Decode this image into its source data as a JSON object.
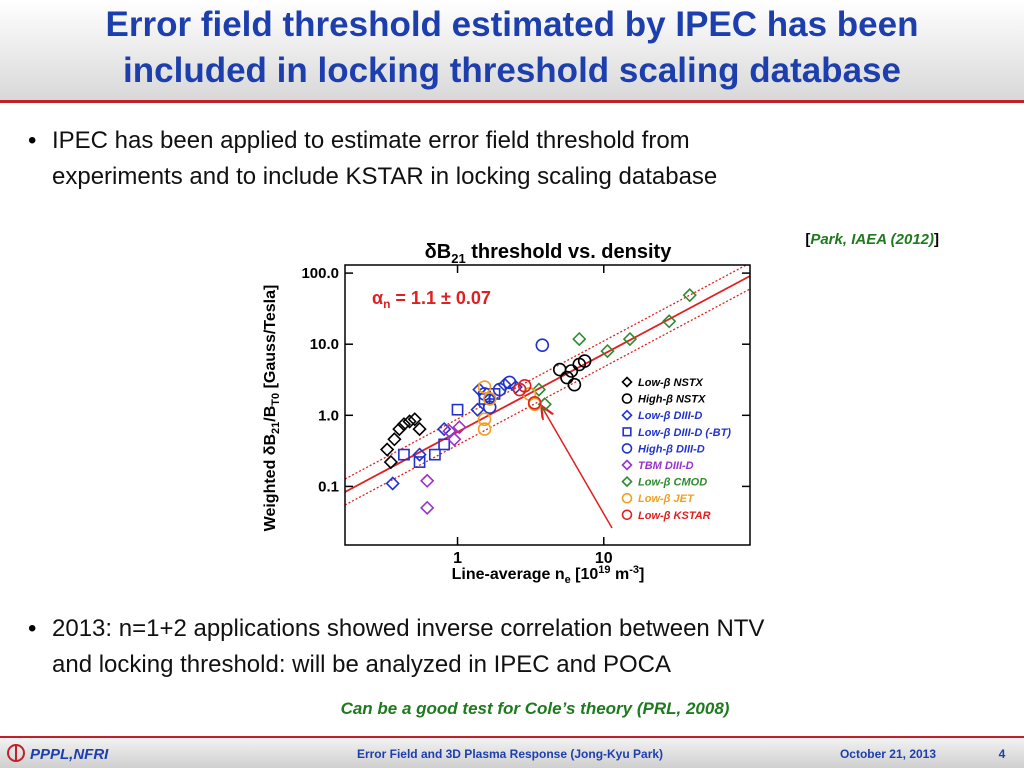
{
  "header": {
    "title_lines": [
      "Error field threshold estimated by IPEC has been",
      "included in locking threshold scaling database"
    ]
  },
  "bullets": [
    [
      "IPEC has been applied to estimate error field threshold from",
      "experiments and to include KSTAR in locking scaling database"
    ],
    [
      "2013: n=1+2 applications showed inverse correlation between NTV",
      "and locking threshold: will be analyzed in IPEC and POCA"
    ]
  ],
  "citation": [
    "[",
    "Park, IAEA (2012)",
    "]"
  ],
  "note": "Can be a good test for Cole’s theory (PRL, 2008)",
  "footer": {
    "org": "PPPL,NFRI",
    "talk": "Error Field and 3D Plasma Response (Jong-Kyu Park)",
    "date": "October 21, 2013",
    "page": "4"
  },
  "chart_data": {
    "type": "scatter",
    "title_parts": [
      "δB",
      "21",
      " threshold vs. density"
    ],
    "y_label_parts": [
      "Weighted δB",
      "21",
      "/B",
      "T0",
      " [Gauss/Tesla]"
    ],
    "x_label_parts": [
      "Line-average n",
      "e",
      " [10",
      "19",
      " m",
      "-3",
      "]"
    ],
    "annotation_parts": [
      "α",
      "n",
      " = 1.1 ± 0.07"
    ],
    "xscale": "log",
    "yscale": "log",
    "xlim": [
      0.17,
      100
    ],
    "ylim": [
      0.015,
      130
    ],
    "xticks": [
      1,
      10
    ],
    "yticks": [
      0.1,
      {
        "value": 1,
        "label": "1.0"
      },
      {
        "value": 10,
        "label": "10.0"
      },
      {
        "value": 100,
        "label": "100.0"
      }
    ],
    "series": [
      {
        "name": "Low-β NSTX",
        "color": "#000000",
        "marker": "diamond",
        "x": [
          0.33,
          0.37,
          0.4,
          0.43,
          0.47,
          0.51,
          0.55,
          0.35
        ],
        "values": [
          0.33,
          0.46,
          0.64,
          0.75,
          0.82,
          0.88,
          0.64,
          0.22
        ]
      },
      {
        "name": "High-β NSTX",
        "color": "#000000",
        "marker": "circle",
        "x": [
          5.0,
          5.6,
          6.0,
          6.3,
          6.8,
          7.4
        ],
        "values": [
          4.4,
          3.4,
          4.2,
          2.7,
          5.2,
          5.8
        ]
      },
      {
        "name": "Low-β DIII-D",
        "color": "#2233cc",
        "marker": "diamond",
        "x": [
          0.36,
          0.55,
          0.81,
          1.41,
          1.66,
          2.1,
          2.5,
          1.37
        ],
        "values": [
          0.11,
          0.28,
          0.64,
          2.3,
          1.7,
          2.7,
          2.5,
          1.2
        ]
      },
      {
        "name": "Low-β DIII-D (-BT)",
        "color": "#2233cc",
        "marker": "square",
        "x": [
          0.43,
          0.55,
          0.7,
          0.81,
          1.0,
          1.53,
          1.79
        ],
        "values": [
          0.28,
          0.22,
          0.28,
          0.39,
          1.2,
          1.7,
          2.0
        ]
      },
      {
        "name": "High-β DIII-D",
        "color": "#2233cc",
        "marker": "circle",
        "x": [
          3.8,
          1.53,
          1.94,
          2.27,
          1.66
        ],
        "values": [
          9.7,
          2.0,
          2.3,
          2.9,
          1.3
        ]
      },
      {
        "name": "TBM DIII-D",
        "color": "#9933cc",
        "marker": "diamond",
        "x": [
          0.62,
          0.62,
          0.88,
          1.03,
          0.95
        ],
        "values": [
          0.05,
          0.12,
          0.6,
          0.68,
          0.46
        ]
      },
      {
        "name": "Low-β CMOD",
        "color": "#2e8b2e",
        "marker": "diamond",
        "x": [
          3.6,
          6.8,
          10.6,
          15.1,
          28,
          38.7,
          3.95
        ],
        "values": [
          2.3,
          11.8,
          8.0,
          11.8,
          21,
          49,
          1.43
        ]
      },
      {
        "name": "Low-β JET",
        "color": "#f0a020",
        "marker": "circle",
        "x": [
          1.53,
          1.53,
          1.53,
          1.66,
          3.1,
          3.37
        ],
        "values": [
          2.5,
          0.64,
          0.88,
          1.7,
          2.0,
          1.43
        ]
      },
      {
        "name": "Low-β KSTAR",
        "color": "#e02020",
        "marker": "circle",
        "x": [
          2.66,
          2.88,
          3.37
        ],
        "values": [
          2.3,
          2.6,
          1.5
        ]
      }
    ]
  }
}
